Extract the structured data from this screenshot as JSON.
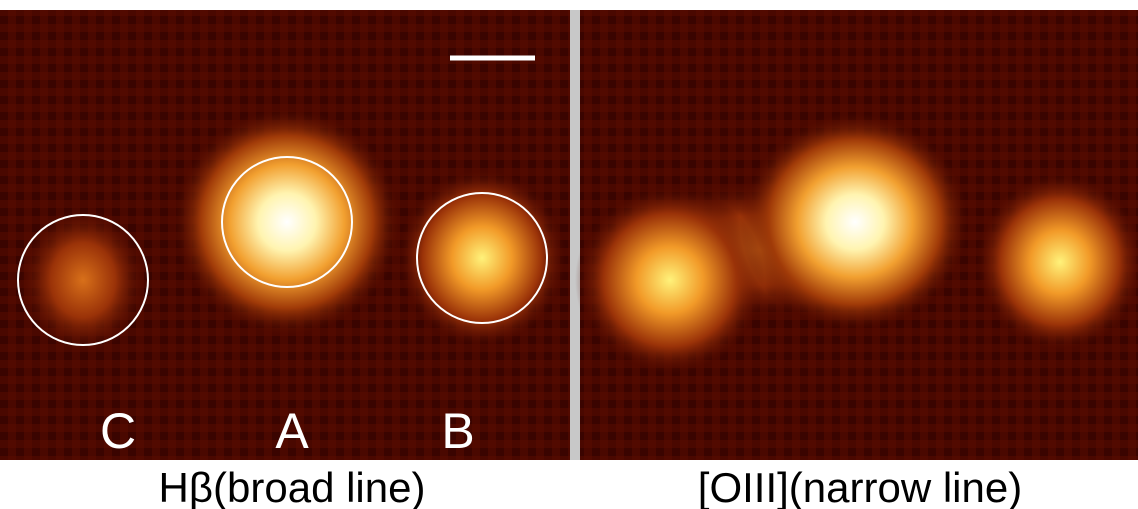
{
  "panels": [
    {
      "caption": "Hβ(broad line)",
      "labels": [
        "C",
        "A",
        "B"
      ]
    },
    {
      "caption": "[OIII](narrow line)"
    }
  ]
}
